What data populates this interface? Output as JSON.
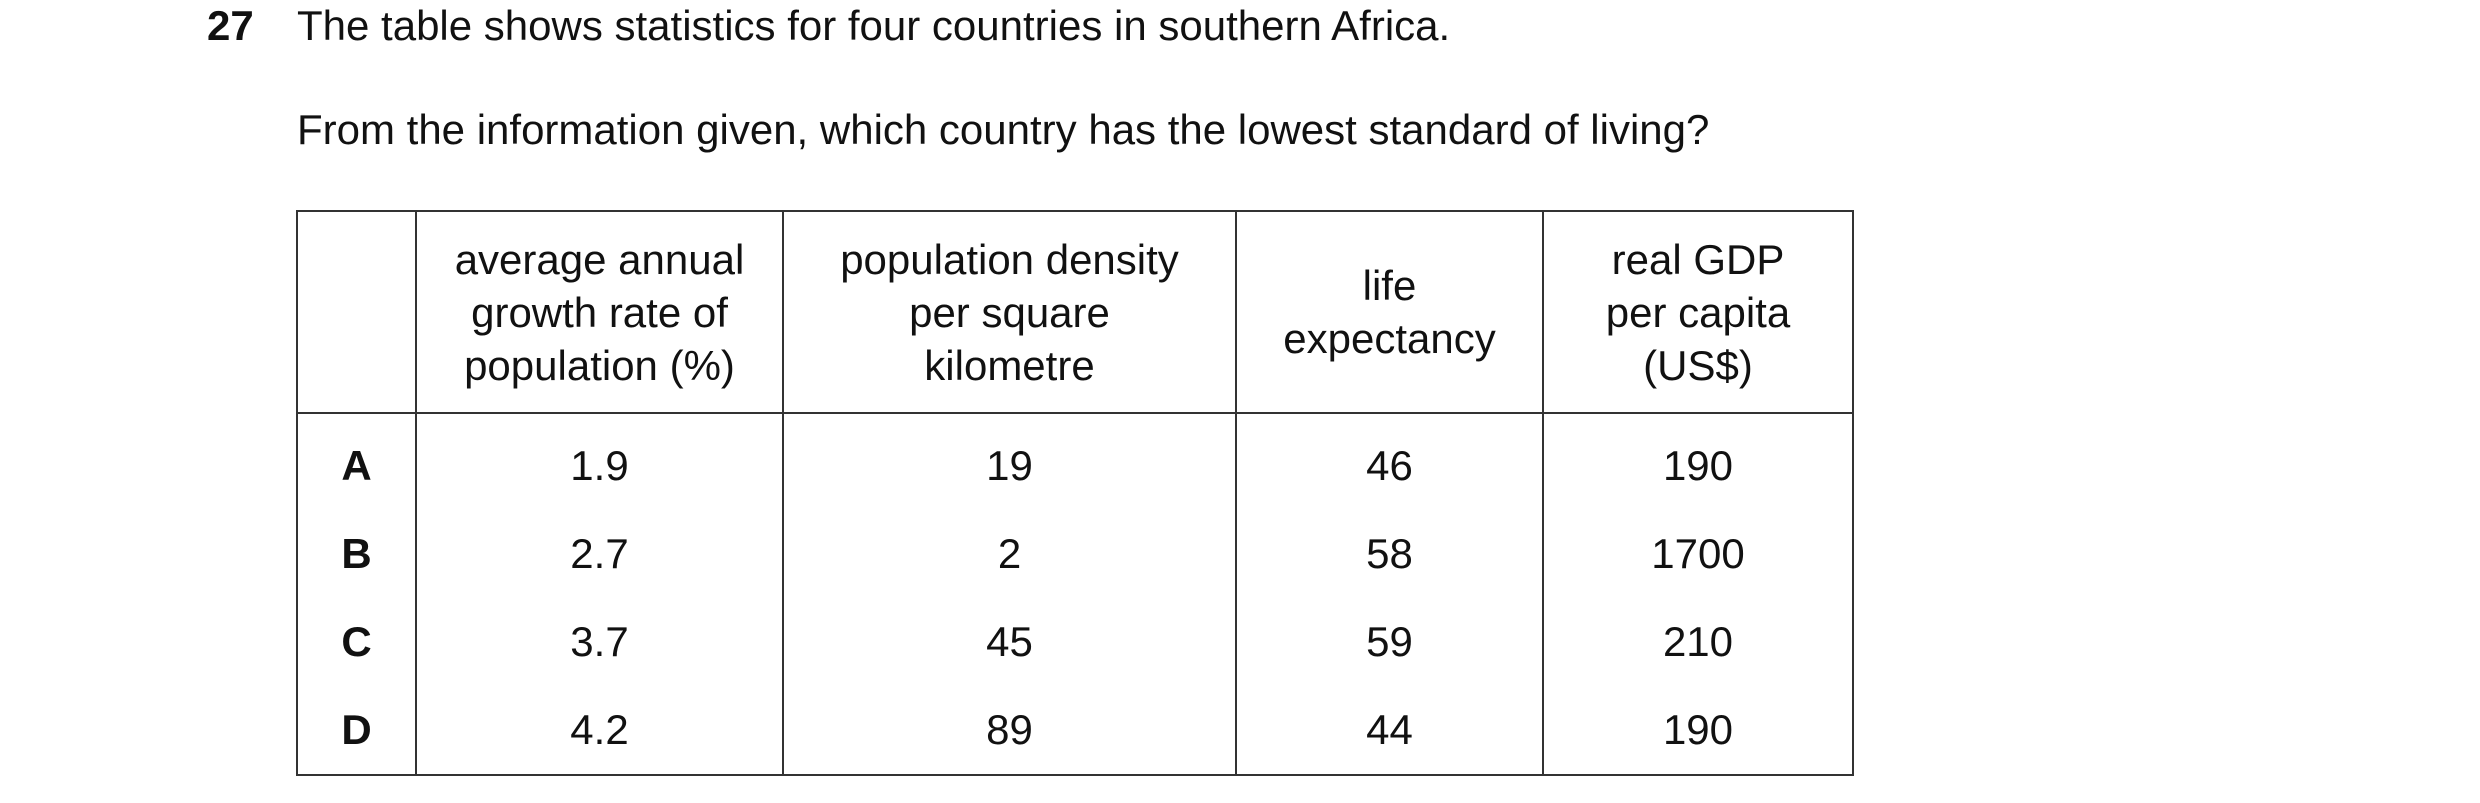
{
  "question": {
    "number": "27",
    "text": "The table shows statistics for four countries in southern Africa.",
    "instruction": "From the information given, which country has the lowest standard of living?"
  },
  "table": {
    "header": [
      [],
      [
        "average annual",
        "growth rate of",
        "population (%)"
      ],
      [
        "population density",
        "per square",
        "kilometre"
      ],
      [
        "life",
        "expectancy"
      ],
      [
        "real GDP",
        "per capita",
        "(US$)"
      ]
    ],
    "rows": [
      [
        "A",
        1.9,
        19,
        46,
        190
      ],
      [
        "B",
        2.7,
        2,
        58,
        1700
      ],
      [
        "C",
        3.7,
        45,
        59,
        210
      ],
      [
        "D",
        4.2,
        89,
        44,
        190
      ]
    ]
  }
}
